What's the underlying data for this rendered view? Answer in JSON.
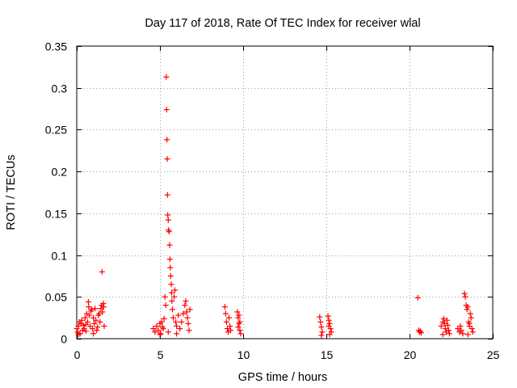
{
  "chart_data": {
    "type": "scatter",
    "title": "Day 117 of 2018, Rate Of TEC Index for receiver wlal",
    "xlabel": "GPS time / hours",
    "ylabel": "ROTI / TECUs",
    "xlim": [
      0,
      25
    ],
    "ylim": [
      0,
      0.35
    ],
    "xticks": [
      0,
      5,
      10,
      15,
      20,
      25
    ],
    "xtick_labels": [
      "0",
      "5",
      "10",
      "15",
      "20",
      "25"
    ],
    "yticks": [
      0,
      0.05,
      0.1,
      0.15,
      0.2,
      0.25,
      0.3,
      0.35
    ],
    "ytick_labels": [
      "0",
      "0.05",
      "0.1",
      "0.15",
      "0.2",
      "0.25",
      "0.3",
      "0.35"
    ],
    "grid": true,
    "marker": "+",
    "color": "#ff0000",
    "series": [
      {
        "name": "ROTI",
        "points": [
          [
            0.0,
            0.012
          ],
          [
            0.05,
            0.008
          ],
          [
            0.1,
            0.015
          ],
          [
            0.15,
            0.02
          ],
          [
            0.2,
            0.006
          ],
          [
            0.25,
            0.018
          ],
          [
            0.3,
            0.022
          ],
          [
            0.35,
            0.01
          ],
          [
            0.4,
            0.016
          ],
          [
            0.45,
            0.012
          ],
          [
            0.5,
            0.025
          ],
          [
            0.55,
            0.009
          ],
          [
            0.6,
            0.03
          ],
          [
            0.65,
            0.02
          ],
          [
            0.7,
            0.044
          ],
          [
            0.72,
            0.038
          ],
          [
            0.75,
            0.028
          ],
          [
            0.8,
            0.015
          ],
          [
            0.85,
            0.033
          ],
          [
            0.9,
            0.035
          ],
          [
            0.95,
            0.012
          ],
          [
            1.0,
            0.025
          ],
          [
            1.05,
            0.018
          ],
          [
            1.1,
            0.036
          ],
          [
            1.15,
            0.022
          ],
          [
            1.2,
            0.01
          ],
          [
            1.25,
            0.014
          ],
          [
            1.3,
            0.028
          ],
          [
            1.35,
            0.03
          ],
          [
            1.4,
            0.02
          ],
          [
            1.45,
            0.036
          ],
          [
            1.5,
            0.04
          ],
          [
            1.52,
            0.08
          ],
          [
            1.55,
            0.032
          ],
          [
            1.6,
            0.042
          ],
          [
            1.62,
            0.038
          ],
          [
            1.65,
            0.015
          ],
          [
            0.1,
            0.005
          ],
          [
            0.55,
            0.017
          ],
          [
            1.0,
            0.006
          ],
          [
            4.6,
            0.012
          ],
          [
            4.7,
            0.008
          ],
          [
            4.8,
            0.015
          ],
          [
            4.9,
            0.01
          ],
          [
            5.0,
            0.018
          ],
          [
            5.05,
            0.006
          ],
          [
            5.1,
            0.02
          ],
          [
            5.15,
            0.014
          ],
          [
            5.2,
            0.012
          ],
          [
            5.25,
            0.024
          ],
          [
            5.3,
            0.05
          ],
          [
            5.35,
            0.04
          ],
          [
            5.38,
            0.313
          ],
          [
            5.4,
            0.274
          ],
          [
            5.42,
            0.238
          ],
          [
            5.44,
            0.215
          ],
          [
            5.45,
            0.172
          ],
          [
            5.47,
            0.148
          ],
          [
            5.5,
            0.142
          ],
          [
            5.52,
            0.13
          ],
          [
            5.55,
            0.128
          ],
          [
            5.58,
            0.112
          ],
          [
            5.6,
            0.095
          ],
          [
            5.62,
            0.085
          ],
          [
            5.65,
            0.075
          ],
          [
            5.68,
            0.065
          ],
          [
            5.7,
            0.055
          ],
          [
            5.72,
            0.045
          ],
          [
            5.75,
            0.035
          ],
          [
            5.8,
            0.025
          ],
          [
            5.85,
            0.05
          ],
          [
            5.9,
            0.058
          ],
          [
            5.95,
            0.02
          ],
          [
            6.0,
            0.015
          ],
          [
            6.1,
            0.028
          ],
          [
            6.2,
            0.012
          ],
          [
            6.3,
            0.02
          ],
          [
            6.4,
            0.03
          ],
          [
            6.5,
            0.04
          ],
          [
            6.55,
            0.045
          ],
          [
            6.6,
            0.032
          ],
          [
            6.65,
            0.025
          ],
          [
            6.7,
            0.018
          ],
          [
            6.75,
            0.01
          ],
          [
            6.8,
            0.035
          ],
          [
            5.0,
            0.005
          ],
          [
            5.5,
            0.008
          ],
          [
            6.0,
            0.006
          ],
          [
            8.9,
            0.038
          ],
          [
            8.95,
            0.03
          ],
          [
            9.0,
            0.02
          ],
          [
            9.05,
            0.012
          ],
          [
            9.1,
            0.008
          ],
          [
            9.15,
            0.025
          ],
          [
            9.2,
            0.015
          ],
          [
            9.25,
            0.01
          ],
          [
            9.65,
            0.032
          ],
          [
            9.7,
            0.025
          ],
          [
            9.75,
            0.018
          ],
          [
            9.8,
            0.01
          ],
          [
            9.85,
            0.006
          ],
          [
            9.7,
            0.014
          ],
          [
            9.75,
            0.028
          ],
          [
            9.8,
            0.02
          ],
          [
            14.6,
            0.026
          ],
          [
            14.65,
            0.02
          ],
          [
            14.7,
            0.014
          ],
          [
            14.75,
            0.008
          ],
          [
            15.1,
            0.027
          ],
          [
            15.15,
            0.022
          ],
          [
            15.2,
            0.018
          ],
          [
            15.25,
            0.012
          ],
          [
            15.3,
            0.008
          ],
          [
            14.7,
            0.004
          ],
          [
            15.2,
            0.005
          ],
          [
            15.15,
            0.015
          ],
          [
            20.5,
            0.049
          ],
          [
            20.55,
            0.01
          ],
          [
            20.6,
            0.008
          ],
          [
            20.65,
            0.009
          ],
          [
            20.7,
            0.007
          ],
          [
            21.9,
            0.015
          ],
          [
            22.0,
            0.02
          ],
          [
            22.05,
            0.024
          ],
          [
            22.1,
            0.018
          ],
          [
            22.15,
            0.012
          ],
          [
            22.2,
            0.008
          ],
          [
            22.25,
            0.022
          ],
          [
            22.3,
            0.016
          ],
          [
            22.35,
            0.01
          ],
          [
            22.4,
            0.006
          ],
          [
            22.0,
            0.005
          ],
          [
            22.9,
            0.012
          ],
          [
            23.0,
            0.008
          ],
          [
            23.05,
            0.015
          ],
          [
            23.1,
            0.01
          ],
          [
            23.2,
            0.006
          ],
          [
            23.3,
            0.054
          ],
          [
            23.35,
            0.05
          ],
          [
            23.4,
            0.04
          ],
          [
            23.45,
            0.035
          ],
          [
            23.5,
            0.038
          ],
          [
            23.55,
            0.02
          ],
          [
            23.6,
            0.015
          ],
          [
            23.65,
            0.03
          ],
          [
            23.7,
            0.025
          ],
          [
            23.75,
            0.012
          ],
          [
            23.8,
            0.008
          ],
          [
            23.5,
            0.005
          ],
          [
            23.6,
            0.018
          ]
        ]
      }
    ]
  }
}
